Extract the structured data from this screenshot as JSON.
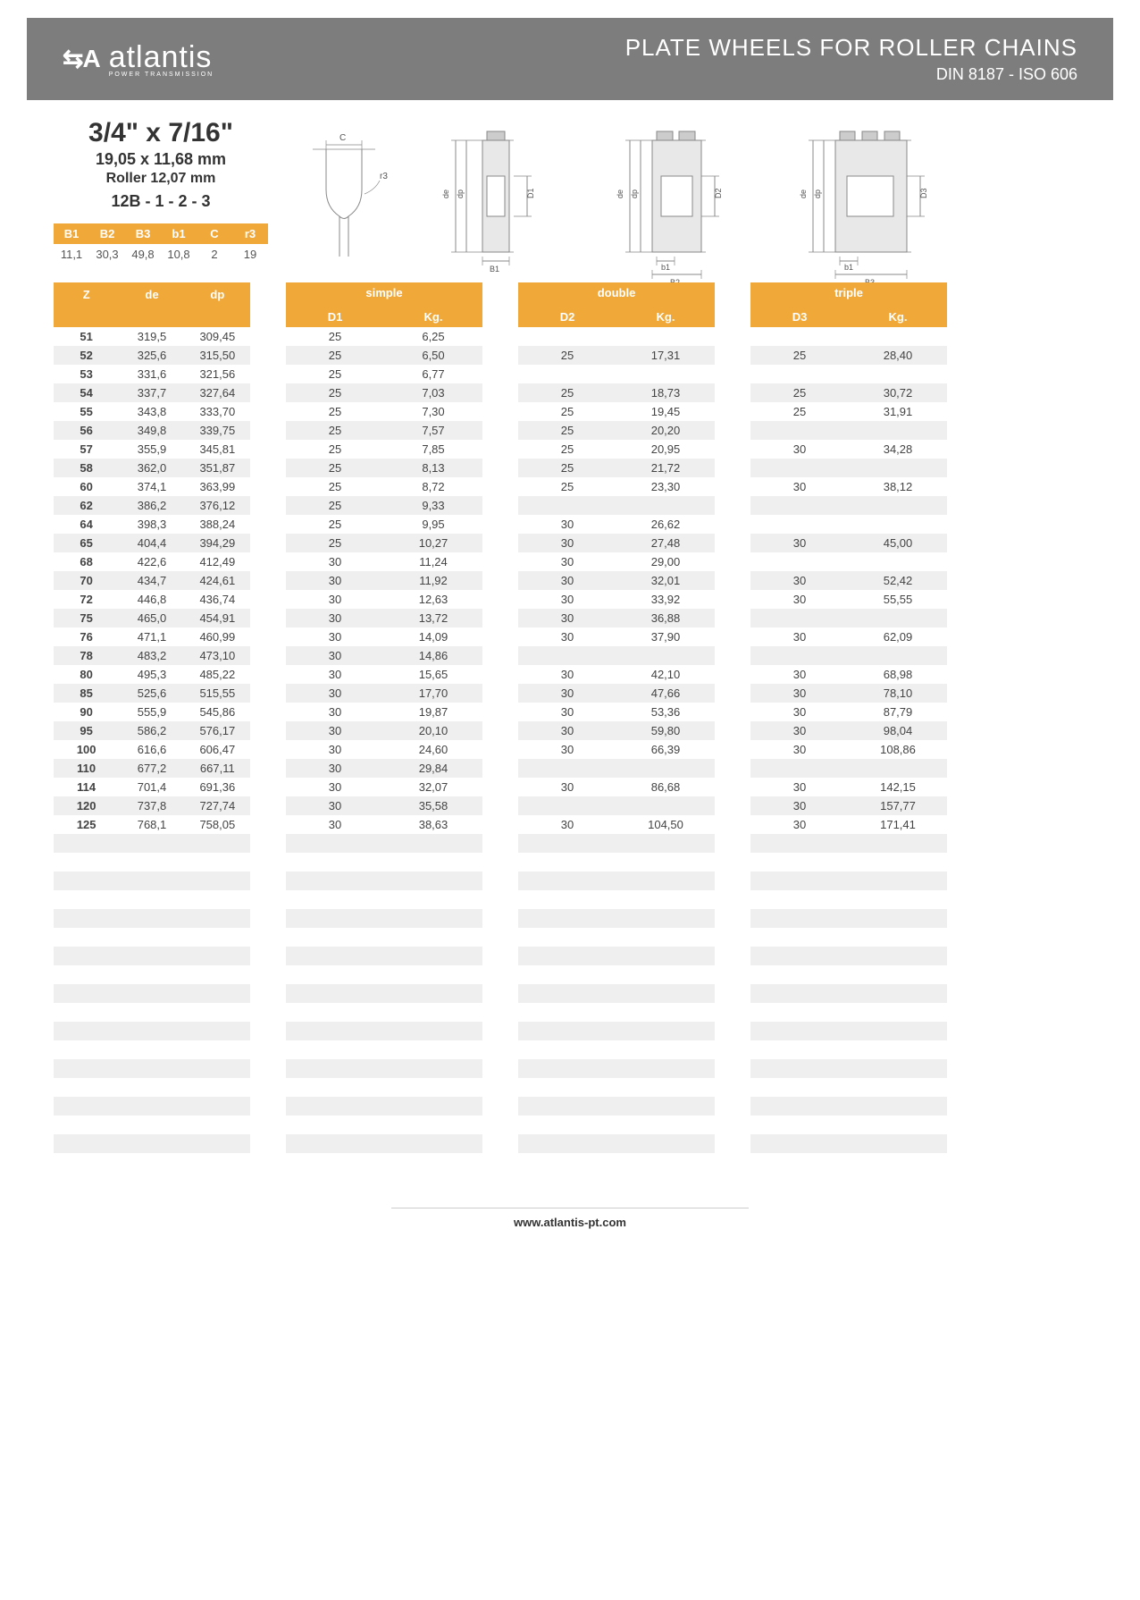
{
  "header": {
    "logo_mark": "⇆A",
    "logo_text": "atlantis",
    "logo_sub": "POWER TRANSMISSION",
    "title_line1": "PLATE WHEELS FOR ROLLER CHAINS",
    "title_line2": "DIN 8187 - ISO 606"
  },
  "spec": {
    "size1": "3/4\" x 7/16\"",
    "size2": "19,05 x 11,68 mm",
    "size3": "Roller 12,07 mm",
    "size4": "12B - 1 - 2 - 3"
  },
  "dims": {
    "headers": [
      "B1",
      "B2",
      "B3",
      "b1",
      "C",
      "r3"
    ],
    "values": [
      "11,1",
      "30,3",
      "49,8",
      "10,8",
      "2",
      "19"
    ]
  },
  "diagram_labels": {
    "c": "C",
    "r3": "r3",
    "de": "de",
    "dp": "dp",
    "d1": "D1",
    "d2": "D2",
    "d3": "D3",
    "b1_l": "B1",
    "b1_s": "b1",
    "b2": "B2",
    "b3": "B3"
  },
  "main_headers": {
    "z": "Z",
    "de": "de",
    "dp": "dp",
    "simple": "simple",
    "double": "double",
    "triple": "triple",
    "d1": "D1",
    "d2": "D2",
    "d3": "D3",
    "kg": "Kg."
  },
  "rows": [
    {
      "z": "51",
      "de": "319,5",
      "dp": "309,45",
      "d1": "25",
      "kg1": "6,25",
      "d2": "",
      "kg2": "",
      "d3": "",
      "kg3": ""
    },
    {
      "z": "52",
      "de": "325,6",
      "dp": "315,50",
      "d1": "25",
      "kg1": "6,50",
      "d2": "25",
      "kg2": "17,31",
      "d3": "25",
      "kg3": "28,40"
    },
    {
      "z": "53",
      "de": "331,6",
      "dp": "321,56",
      "d1": "25",
      "kg1": "6,77",
      "d2": "",
      "kg2": "",
      "d3": "",
      "kg3": ""
    },
    {
      "z": "54",
      "de": "337,7",
      "dp": "327,64",
      "d1": "25",
      "kg1": "7,03",
      "d2": "25",
      "kg2": "18,73",
      "d3": "25",
      "kg3": "30,72"
    },
    {
      "z": "55",
      "de": "343,8",
      "dp": "333,70",
      "d1": "25",
      "kg1": "7,30",
      "d2": "25",
      "kg2": "19,45",
      "d3": "25",
      "kg3": "31,91"
    },
    {
      "z": "56",
      "de": "349,8",
      "dp": "339,75",
      "d1": "25",
      "kg1": "7,57",
      "d2": "25",
      "kg2": "20,20",
      "d3": "",
      "kg3": ""
    },
    {
      "z": "57",
      "de": "355,9",
      "dp": "345,81",
      "d1": "25",
      "kg1": "7,85",
      "d2": "25",
      "kg2": "20,95",
      "d3": "30",
      "kg3": "34,28"
    },
    {
      "z": "58",
      "de": "362,0",
      "dp": "351,87",
      "d1": "25",
      "kg1": "8,13",
      "d2": "25",
      "kg2": "21,72",
      "d3": "",
      "kg3": ""
    },
    {
      "z": "60",
      "de": "374,1",
      "dp": "363,99",
      "d1": "25",
      "kg1": "8,72",
      "d2": "25",
      "kg2": "23,30",
      "d3": "30",
      "kg3": "38,12"
    },
    {
      "z": "62",
      "de": "386,2",
      "dp": "376,12",
      "d1": "25",
      "kg1": "9,33",
      "d2": "",
      "kg2": "",
      "d3": "",
      "kg3": ""
    },
    {
      "z": "64",
      "de": "398,3",
      "dp": "388,24",
      "d1": "25",
      "kg1": "9,95",
      "d2": "30",
      "kg2": "26,62",
      "d3": "",
      "kg3": ""
    },
    {
      "z": "65",
      "de": "404,4",
      "dp": "394,29",
      "d1": "25",
      "kg1": "10,27",
      "d2": "30",
      "kg2": "27,48",
      "d3": "30",
      "kg3": "45,00"
    },
    {
      "z": "68",
      "de": "422,6",
      "dp": "412,49",
      "d1": "30",
      "kg1": "11,24",
      "d2": "30",
      "kg2": "29,00",
      "d3": "",
      "kg3": ""
    },
    {
      "z": "70",
      "de": "434,7",
      "dp": "424,61",
      "d1": "30",
      "kg1": "11,92",
      "d2": "30",
      "kg2": "32,01",
      "d3": "30",
      "kg3": "52,42"
    },
    {
      "z": "72",
      "de": "446,8",
      "dp": "436,74",
      "d1": "30",
      "kg1": "12,63",
      "d2": "30",
      "kg2": "33,92",
      "d3": "30",
      "kg3": "55,55"
    },
    {
      "z": "75",
      "de": "465,0",
      "dp": "454,91",
      "d1": "30",
      "kg1": "13,72",
      "d2": "30",
      "kg2": "36,88",
      "d3": "",
      "kg3": ""
    },
    {
      "z": "76",
      "de": "471,1",
      "dp": "460,99",
      "d1": "30",
      "kg1": "14,09",
      "d2": "30",
      "kg2": "37,90",
      "d3": "30",
      "kg3": "62,09"
    },
    {
      "z": "78",
      "de": "483,2",
      "dp": "473,10",
      "d1": "30",
      "kg1": "14,86",
      "d2": "",
      "kg2": "",
      "d3": "",
      "kg3": ""
    },
    {
      "z": "80",
      "de": "495,3",
      "dp": "485,22",
      "d1": "30",
      "kg1": "15,65",
      "d2": "30",
      "kg2": "42,10",
      "d3": "30",
      "kg3": "68,98"
    },
    {
      "z": "85",
      "de": "525,6",
      "dp": "515,55",
      "d1": "30",
      "kg1": "17,70",
      "d2": "30",
      "kg2": "47,66",
      "d3": "30",
      "kg3": "78,10"
    },
    {
      "z": "90",
      "de": "555,9",
      "dp": "545,86",
      "d1": "30",
      "kg1": "19,87",
      "d2": "30",
      "kg2": "53,36",
      "d3": "30",
      "kg3": "87,79"
    },
    {
      "z": "95",
      "de": "586,2",
      "dp": "576,17",
      "d1": "30",
      "kg1": "20,10",
      "d2": "30",
      "kg2": "59,80",
      "d3": "30",
      "kg3": "98,04"
    },
    {
      "z": "100",
      "de": "616,6",
      "dp": "606,47",
      "d1": "30",
      "kg1": "24,60",
      "d2": "30",
      "kg2": "66,39",
      "d3": "30",
      "kg3": "108,86"
    },
    {
      "z": "110",
      "de": "677,2",
      "dp": "667,11",
      "d1": "30",
      "kg1": "29,84",
      "d2": "",
      "kg2": "",
      "d3": "",
      "kg3": ""
    },
    {
      "z": "114",
      "de": "701,4",
      "dp": "691,36",
      "d1": "30",
      "kg1": "32,07",
      "d2": "30",
      "kg2": "86,68",
      "d3": "30",
      "kg3": "142,15"
    },
    {
      "z": "120",
      "de": "737,8",
      "dp": "727,74",
      "d1": "30",
      "kg1": "35,58",
      "d2": "",
      "kg2": "",
      "d3": "30",
      "kg3": "157,77"
    },
    {
      "z": "125",
      "de": "768,1",
      "dp": "758,05",
      "d1": "30",
      "kg1": "38,63",
      "d2": "30",
      "kg2": "104,50",
      "d3": "30",
      "kg3": "171,41"
    }
  ],
  "empty_rows": 18,
  "footer": {
    "url": "www.atlantis-pt.com"
  },
  "colors": {
    "header_bg": "#7d7d7d",
    "accent": "#f0a838",
    "row_alt": "#efefef",
    "text": "#444444"
  }
}
